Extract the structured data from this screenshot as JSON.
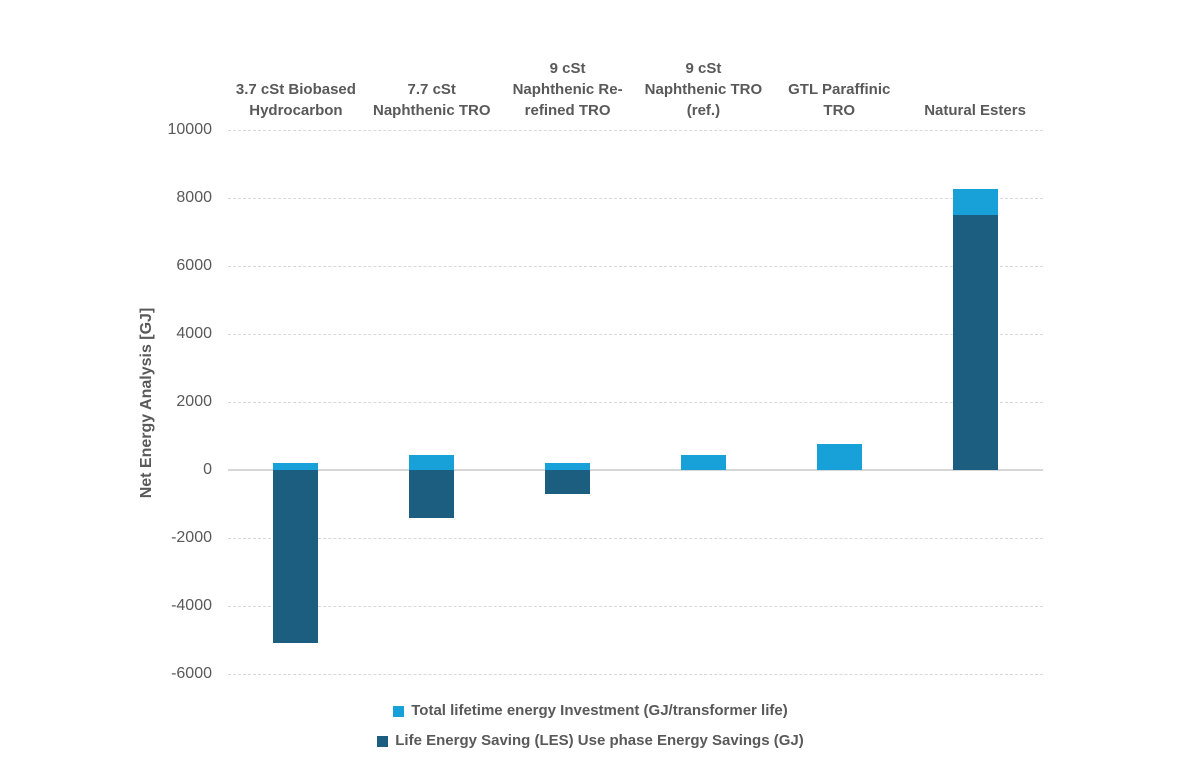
{
  "chart": {
    "y_axis_title": "Net Energy Analysis [GJ]"
  },
  "colors": {
    "investment_light_blue": "#18A0D8",
    "les_dark_blue": "#1B5E7F",
    "gridline_gray": "#D9D9D9",
    "label_gray": "#595959"
  },
  "chart_data": {
    "type": "bar",
    "stacked": true,
    "title": "",
    "xlabel": "",
    "ylabel": "Net Energy Analysis [GJ]",
    "ylim": [
      -6000,
      10000
    ],
    "y_ticks": [
      10000,
      8000,
      6000,
      4000,
      2000,
      0,
      -2000,
      -4000,
      -6000
    ],
    "grid": "dashed horizontal",
    "legend_position": "bottom",
    "categories": [
      "3.7 cSt Biobased Hydrocarbon",
      "7.7 cSt Naphthenic TRO",
      "9 cSt Naphthenic Re-refined TRO",
      "9 cSt Naphthenic TRO (ref.)",
      "GTL Paraffinic TRO",
      "Natural Esters"
    ],
    "category_label_lines": [
      [
        "3.7 cSt Biobased",
        "Hydrocarbon"
      ],
      [
        "7.7 cSt",
        "Naphthenic TRO"
      ],
      [
        "9 cSt",
        "Naphthenic Re-",
        "refined TRO"
      ],
      [
        "9 cSt",
        "Naphthenic TRO",
        "(ref.)"
      ],
      [
        "GTL Paraffinic",
        "TRO"
      ],
      [
        "Natural Esters"
      ]
    ],
    "series": [
      {
        "name": "Total lifetime energy Investment (GJ/transformer life)",
        "color": "#18A0D8",
        "values": [
          200,
          440,
          200,
          430,
          770,
          770
        ]
      },
      {
        "name": "Life Energy Saving (LES) Use phase Energy Savings (GJ)",
        "color": "#1B5E7F",
        "values": [
          -5100,
          -1400,
          -700,
          0,
          0,
          7500
        ]
      }
    ]
  }
}
